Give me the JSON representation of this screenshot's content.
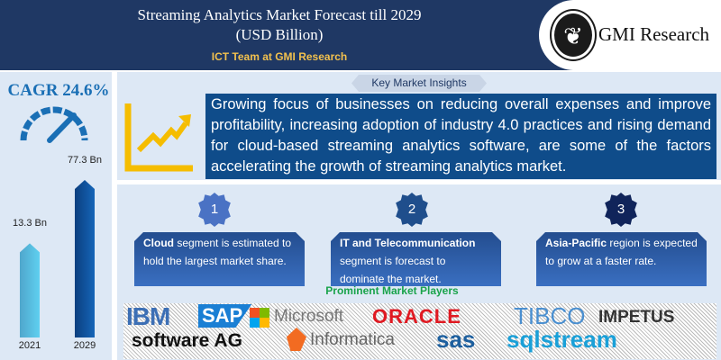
{
  "header": {
    "title_line1": "Streaming Analytics Market Forecast till 2029",
    "title_line2": "(USD Billion)",
    "team": "ICT Team at GMI Research",
    "logo_text": "GMI Research"
  },
  "left": {
    "cagr": "CAGR 24.6%",
    "gauge_icon": "speedometer-icon"
  },
  "chart_data": {
    "type": "bar",
    "categories": [
      "2021",
      "2029"
    ],
    "values": [
      13.3,
      77.3
    ],
    "data_labels": [
      "13.3 Bn",
      "77.3 Bn"
    ],
    "unit": "USD Billion"
  },
  "insights": {
    "label": "Key Market Insights",
    "icon": "growth-chart-icon",
    "text": "Growing focus of businesses on reducing overall expenses and improve profitability, increasing adoption of industry 4.0 practices and rising demand for cloud-based streaming analytics software, are some of the factors accelerating the growth of streaming analytics market."
  },
  "highlights": [
    {
      "number": "1",
      "bold": "Cloud",
      "text": " segment  is estimated to hold the  largest market share.",
      "color": "#4a72c4"
    },
    {
      "number": "2",
      "bold": "IT and Telecommunication",
      "text": " segment  is forecast to dominate the market.",
      "color": "#1f4e8c"
    },
    {
      "number": "3",
      "bold": "Asia-Pacific",
      "text": " region is expected  to grow at a faster rate.",
      "color": "#10245a"
    }
  ],
  "players": {
    "title": "Prominent  Market  Players",
    "logos": [
      "IBM",
      "SAP",
      "Microsoft",
      "ORACLE",
      "TIBCO",
      "IMPETUS",
      "software AG",
      "Informatica",
      "sas",
      "sqlstream"
    ]
  }
}
